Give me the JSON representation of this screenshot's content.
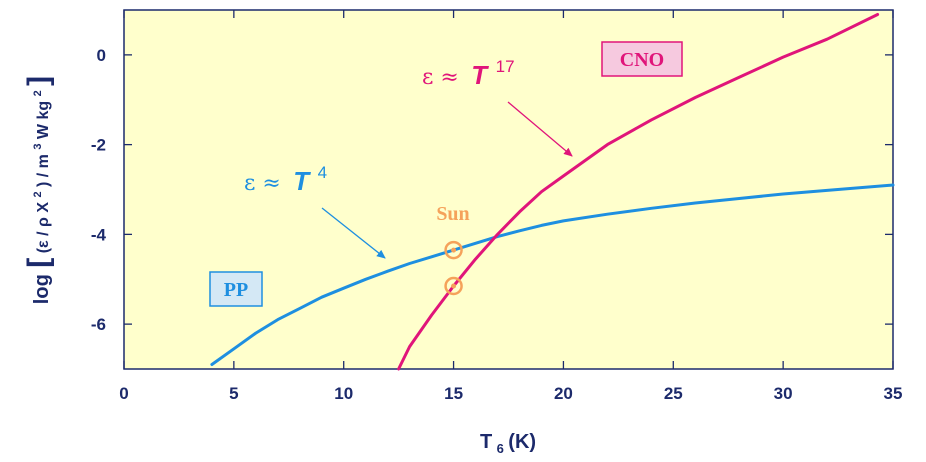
{
  "chart_data": {
    "type": "line",
    "xlabel": {
      "main": "T",
      "sub": "6",
      "tail": "(K)"
    },
    "ylabel": {
      "prefix": "log",
      "inner": "(ε / ρ X",
      "sq": "2",
      "mid": ") / m",
      "cube": "3",
      "unit": " W kg",
      "unitexp": "2"
    },
    "xlim": [
      0,
      35
    ],
    "ylim": [
      -7,
      1
    ],
    "xticks": [
      "0",
      "5",
      "10",
      "15",
      "20",
      "25",
      "30",
      "35"
    ],
    "yticks": [
      "0",
      "-2",
      "-4",
      "-6"
    ],
    "ytick_values": [
      0,
      -2,
      -4,
      -6
    ],
    "xtick_values": [
      0,
      5,
      10,
      15,
      20,
      25,
      30,
      35
    ],
    "series": [
      {
        "name": "PP",
        "color": "#1e8fe0",
        "x": [
          4,
          5,
          6,
          7,
          8,
          9,
          10,
          11,
          12,
          13,
          14,
          15,
          16,
          17,
          18,
          19,
          20,
          22,
          24,
          26,
          28,
          30,
          32,
          35
        ],
        "y": [
          -6.9,
          -6.55,
          -6.2,
          -5.9,
          -5.65,
          -5.4,
          -5.2,
          -5.0,
          -4.82,
          -4.65,
          -4.5,
          -4.35,
          -4.2,
          -4.05,
          -3.92,
          -3.8,
          -3.7,
          -3.55,
          -3.42,
          -3.3,
          -3.2,
          -3.1,
          -3.02,
          -2.9
        ]
      },
      {
        "name": "CNO",
        "color": "#e0157a",
        "x": [
          12.5,
          13,
          14,
          15,
          16,
          17,
          18,
          19,
          20,
          22,
          24,
          26,
          28,
          30,
          32,
          34.3
        ],
        "y": [
          -7.0,
          -6.5,
          -5.8,
          -5.15,
          -4.55,
          -4.0,
          -3.5,
          -3.05,
          -2.7,
          -2.0,
          -1.45,
          -0.95,
          -0.5,
          -0.05,
          0.35,
          0.9
        ]
      }
    ],
    "sun_points": [
      {
        "x": 15,
        "y": -4.35
      },
      {
        "x": 15,
        "y": -5.15
      }
    ],
    "annotations": {
      "pp_box": "PP",
      "cno_box": "CNO",
      "sun": "Sun",
      "pp_formula": {
        "eps": "ε ≈",
        "t": "T",
        "exp": "4"
      },
      "cno_formula": {
        "eps": "ε ≈",
        "t": "T",
        "exp": "17"
      }
    },
    "colors": {
      "background": "#ffffcc",
      "axis": "#1c2a6b",
      "sun": "#f5a25a"
    },
    "grid": false
  }
}
